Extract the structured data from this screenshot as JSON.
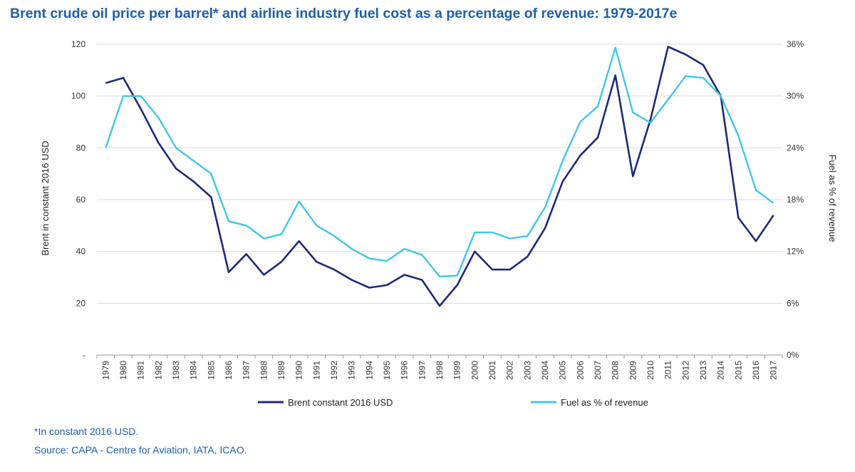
{
  "chart_data": {
    "type": "line",
    "title": "Brent crude oil price per barrel* and airline industry fuel cost as a percentage of revenue: 1979-2017e",
    "categories": [
      "1979",
      "1980",
      "1981",
      "1982",
      "1983",
      "1984",
      "1985",
      "1986",
      "1987",
      "1988",
      "1989",
      "1990",
      "1991",
      "1992",
      "1993",
      "1994",
      "1995",
      "1996",
      "1997",
      "1998",
      "1999",
      "2000",
      "2001",
      "2002",
      "2003",
      "2004",
      "2005",
      "2006",
      "2007",
      "2008",
      "2009",
      "2010",
      "2011",
      "2012",
      "2013",
      "2014",
      "2015",
      "2016",
      "2017"
    ],
    "ylabel_left": "Brent in constant 2016 USD",
    "ylabel_right": "Fuel as % of revenue",
    "ylim_left": [
      0,
      120
    ],
    "ylim_right": [
      0,
      36
    ],
    "yticks_left": [
      "-",
      "20",
      "40",
      "60",
      "80",
      "100",
      "120"
    ],
    "yticks_right": [
      "0%",
      "6%",
      "12%",
      "18%",
      "24%",
      "30%",
      "36%"
    ],
    "grid": true,
    "legend_position": "bottom",
    "series": [
      {
        "name": "Brent constant 2016 USD",
        "axis": "left",
        "color": "#1e2a78",
        "values": [
          105,
          107,
          95,
          82,
          72,
          67,
          61,
          32,
          39,
          31,
          36,
          44,
          36,
          33,
          29,
          26,
          27,
          31,
          29,
          19,
          27,
          40,
          33,
          33,
          38,
          49,
          67,
          77,
          84,
          108,
          69,
          91,
          119,
          116,
          112,
          100,
          53,
          44,
          54
        ]
      },
      {
        "name": "Fuel as % of revenue",
        "axis": "right",
        "color": "#3ec7e8",
        "values": [
          24.0,
          30.0,
          30.0,
          27.5,
          24.0,
          22.5,
          21.0,
          15.5,
          15.0,
          13.5,
          14.0,
          17.8,
          15.0,
          13.8,
          12.3,
          11.2,
          10.9,
          12.3,
          11.6,
          9.1,
          9.2,
          14.2,
          14.2,
          13.5,
          13.8,
          17.1,
          22.5,
          27.0,
          28.8,
          35.6,
          28.1,
          26.9,
          29.6,
          32.3,
          32.1,
          30.0,
          25.4,
          19.1,
          17.6
        ]
      }
    ]
  },
  "footnotes": {
    "note": "*In constant 2016 USD.",
    "source": "Source: CAPA - Centre for Aviation, IATA, ICAO."
  }
}
